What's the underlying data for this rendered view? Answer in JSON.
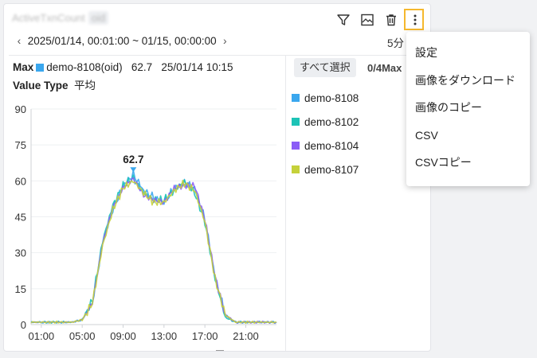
{
  "widget": {
    "title": "ActiveTxnCount",
    "title_tag": "oid",
    "toolbar": {
      "filter_icon": "filter-icon",
      "image_icon": "chart-image-icon",
      "delete_icon": "trash-icon",
      "more_icon": "kebab-icon"
    },
    "time_range": "2025/01/14, 00:01:00 ~ 01/15, 00:00:00",
    "interval": "5分",
    "max_label": "Max",
    "max_series": "demo-8108(oid)",
    "max_value": "62.7",
    "max_time": "25/01/14 10:15",
    "value_type_label": "Value Type",
    "value_type": "平均",
    "select_all": "すべて選択",
    "selected_count": "0/4Max",
    "peak_label": "62.7"
  },
  "menu": {
    "items": [
      "設定",
      "画像をダウンロード",
      "画像のコピー",
      "CSV",
      "CSVコピー"
    ]
  },
  "chart_data": {
    "type": "line",
    "x_ticks": [
      "01:00",
      "05:00",
      "09:00",
      "13:00",
      "17:00",
      "21:00"
    ],
    "y_ticks": [
      "0",
      "15",
      "30",
      "45",
      "60",
      "75",
      "90"
    ],
    "ylim": [
      0,
      90
    ],
    "x": [
      "00:00",
      "01:00",
      "02:00",
      "03:00",
      "04:00",
      "05:00",
      "06:00",
      "07:00",
      "08:00",
      "09:00",
      "10:00",
      "11:00",
      "12:00",
      "13:00",
      "14:00",
      "15:00",
      "16:00",
      "17:00",
      "18:00",
      "19:00",
      "20:00",
      "21:00",
      "22:00",
      "23:00",
      "24:00"
    ],
    "series": [
      {
        "name": "demo-8108",
        "color": "#3aa7ee",
        "values": [
          1,
          1,
          1,
          1,
          1,
          2,
          9,
          34,
          48,
          58,
          62.7,
          56,
          53,
          51,
          57,
          59,
          57,
          44,
          20,
          4,
          1,
          1,
          1,
          1,
          1
        ]
      },
      {
        "name": "demo-8102",
        "color": "#1dc3b6",
        "values": [
          1,
          1,
          1,
          1,
          1,
          2,
          10,
          35,
          50,
          58,
          61,
          55,
          52,
          52,
          56,
          60,
          55,
          43,
          19,
          3,
          1,
          1,
          1,
          1,
          1
        ]
      },
      {
        "name": "demo-8104",
        "color": "#8b5cf6",
        "values": [
          1,
          1,
          1,
          1,
          1,
          2,
          9,
          34,
          49,
          57,
          61,
          54,
          52,
          51,
          57,
          58,
          58,
          44,
          20,
          4,
          1,
          1,
          1,
          1,
          1
        ]
      },
      {
        "name": "demo-8107",
        "color": "#c5d13a",
        "values": [
          1,
          1,
          1,
          1,
          1,
          2,
          9,
          33,
          48,
          57,
          60,
          55,
          51,
          51,
          56,
          59,
          56,
          43,
          19,
          4,
          1,
          1,
          1,
          1,
          1
        ]
      }
    ]
  }
}
